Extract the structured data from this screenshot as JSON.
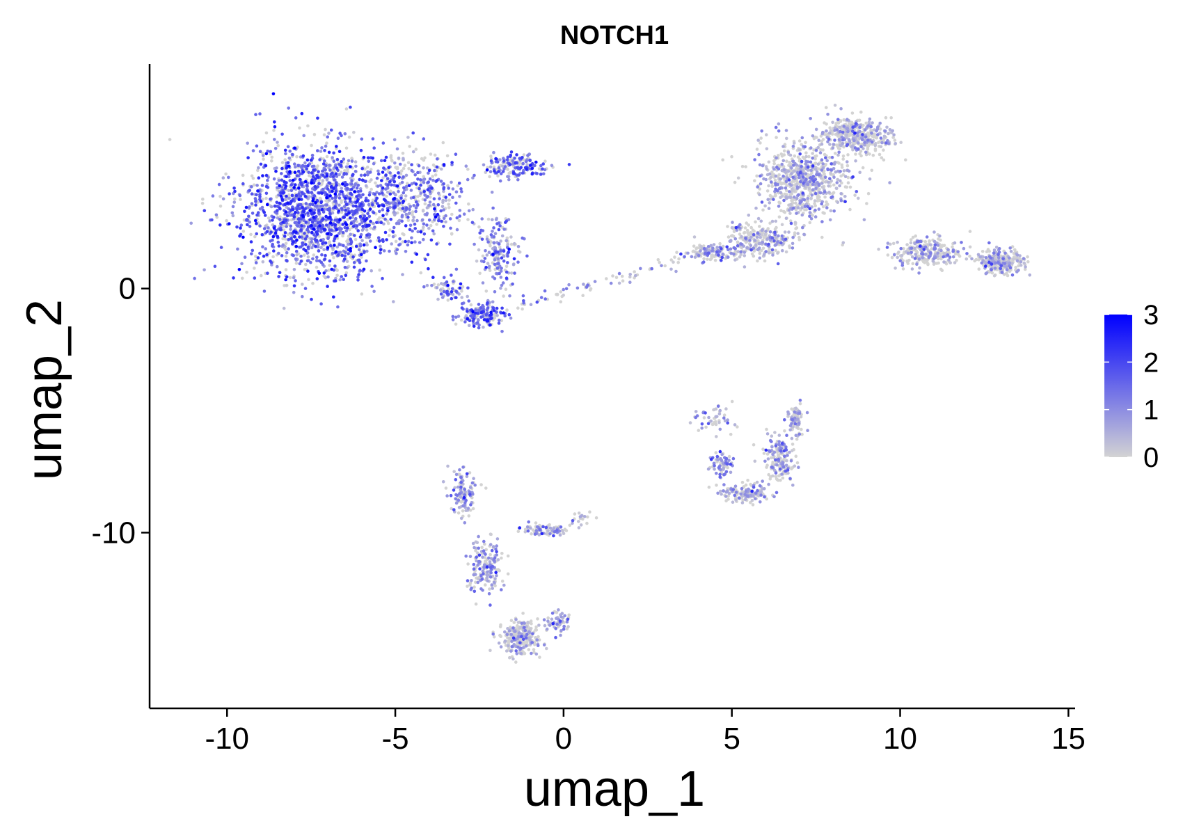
{
  "chart_data": {
    "type": "scatter",
    "title": "NOTCH1",
    "xlabel": "umap_1",
    "ylabel": "umap_2",
    "xlim": [
      -12.3,
      15.2
    ],
    "ylim": [
      -17.2,
      9.2
    ],
    "x_ticks": [
      -10,
      -5,
      0,
      5,
      10,
      15
    ],
    "x_tick_labels": [
      "-10",
      "-5",
      "0",
      "5",
      "10",
      "15"
    ],
    "y_ticks": [
      0,
      -10
    ],
    "y_tick_labels": [
      "0",
      "-10"
    ],
    "grid": false,
    "legend": {
      "type": "colorbar",
      "position": "right",
      "min": 0,
      "max": 3,
      "ticks": [
        0,
        1,
        2,
        3
      ],
      "tick_labels": [
        "0",
        "1",
        "2",
        "3"
      ],
      "low_color": "#d3d3d3",
      "high_color": "#0000ff"
    },
    "clusters": [
      {
        "center": [
          -7.3,
          3.2
        ],
        "spread": [
          1.9,
          2.2
        ],
        "count": 1700,
        "expr_mean": 1.6
      },
      {
        "center": [
          -4.5,
          3.6
        ],
        "spread": [
          1.3,
          1.6
        ],
        "count": 450,
        "expr_mean": 1.2
      },
      {
        "center": [
          -1.4,
          5.0
        ],
        "spread": [
          0.8,
          0.4
        ],
        "count": 160,
        "expr_mean": 1.3
      },
      {
        "center": [
          -1.9,
          1.5
        ],
        "spread": [
          0.5,
          1.2
        ],
        "count": 160,
        "expr_mean": 1.1
      },
      {
        "center": [
          -2.4,
          -1.1
        ],
        "spread": [
          0.5,
          0.4
        ],
        "count": 150,
        "expr_mean": 1.4
      },
      {
        "center": [
          -3.4,
          0.0
        ],
        "spread": [
          0.5,
          0.4
        ],
        "count": 70,
        "expr_mean": 1.2
      },
      {
        "center": [
          7.2,
          4.5
        ],
        "spread": [
          1.2,
          1.4
        ],
        "count": 700,
        "expr_mean": 0.3
      },
      {
        "center": [
          8.7,
          6.3
        ],
        "spread": [
          0.9,
          0.6
        ],
        "count": 400,
        "expr_mean": 0.2
      },
      {
        "center": [
          5.8,
          2.0
        ],
        "spread": [
          0.8,
          0.6
        ],
        "count": 250,
        "expr_mean": 0.3
      },
      {
        "center": [
          4.4,
          1.5
        ],
        "spread": [
          0.7,
          0.3
        ],
        "count": 120,
        "expr_mean": 0.4
      },
      {
        "center": [
          10.8,
          1.5
        ],
        "spread": [
          0.9,
          0.5
        ],
        "count": 250,
        "expr_mean": 0.3
      },
      {
        "center": [
          13.0,
          1.1
        ],
        "spread": [
          0.6,
          0.4
        ],
        "count": 260,
        "expr_mean": 0.2
      },
      {
        "center": [
          -3.0,
          -8.4
        ],
        "spread": [
          0.3,
          0.8
        ],
        "count": 120,
        "expr_mean": 0.7
      },
      {
        "center": [
          -2.3,
          -11.4
        ],
        "spread": [
          0.4,
          0.9
        ],
        "count": 170,
        "expr_mean": 0.6
      },
      {
        "center": [
          -0.6,
          -9.9
        ],
        "spread": [
          0.6,
          0.2
        ],
        "count": 90,
        "expr_mean": 0.2
      },
      {
        "center": [
          -1.3,
          -14.3
        ],
        "spread": [
          0.5,
          0.6
        ],
        "count": 260,
        "expr_mean": 0.2
      },
      {
        "center": [
          -0.2,
          -13.6
        ],
        "spread": [
          0.3,
          0.4
        ],
        "count": 60,
        "expr_mean": 0.7
      },
      {
        "center": [
          5.4,
          -8.4
        ],
        "spread": [
          0.6,
          0.3
        ],
        "count": 160,
        "expr_mean": 0.3
      },
      {
        "center": [
          6.4,
          -7.0
        ],
        "spread": [
          0.4,
          0.7
        ],
        "count": 160,
        "expr_mean": 0.4
      },
      {
        "center": [
          6.9,
          -5.4
        ],
        "spread": [
          0.2,
          0.6
        ],
        "count": 90,
        "expr_mean": 0.3
      },
      {
        "center": [
          4.7,
          -7.2
        ],
        "spread": [
          0.3,
          0.4
        ],
        "count": 70,
        "expr_mean": 0.8
      },
      {
        "center": [
          4.4,
          -5.3
        ],
        "spread": [
          0.5,
          0.5
        ],
        "count": 50,
        "expr_mean": 0.6
      }
    ],
    "bridges": [
      {
        "from": [
          -1.5,
          -0.8
        ],
        "to": [
          4.0,
          1.3
        ],
        "count": 70,
        "expr_mean": 0.8
      },
      {
        "from": [
          0.3,
          -9.6
        ],
        "to": [
          0.7,
          -9.4
        ],
        "count": 20,
        "expr_mean": 0.1
      }
    ]
  }
}
